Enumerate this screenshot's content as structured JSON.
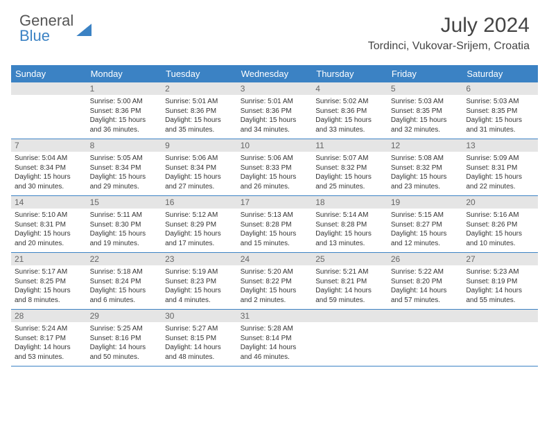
{
  "brand": {
    "part1": "General",
    "part2": "Blue"
  },
  "title": "July 2024",
  "location": "Tordinci, Vukovar-Srijem, Croatia",
  "colors": {
    "accent": "#3b82c4",
    "header_gray": "#e5e5e5",
    "text": "#333333",
    "bg": "#ffffff"
  },
  "day_headers": [
    "Sunday",
    "Monday",
    "Tuesday",
    "Wednesday",
    "Thursday",
    "Friday",
    "Saturday"
  ],
  "weeks": [
    [
      {
        "empty": true
      },
      {
        "num": "1",
        "sunrise": "Sunrise: 5:00 AM",
        "sunset": "Sunset: 8:36 PM",
        "daylight": "Daylight: 15 hours and 36 minutes."
      },
      {
        "num": "2",
        "sunrise": "Sunrise: 5:01 AM",
        "sunset": "Sunset: 8:36 PM",
        "daylight": "Daylight: 15 hours and 35 minutes."
      },
      {
        "num": "3",
        "sunrise": "Sunrise: 5:01 AM",
        "sunset": "Sunset: 8:36 PM",
        "daylight": "Daylight: 15 hours and 34 minutes."
      },
      {
        "num": "4",
        "sunrise": "Sunrise: 5:02 AM",
        "sunset": "Sunset: 8:36 PM",
        "daylight": "Daylight: 15 hours and 33 minutes."
      },
      {
        "num": "5",
        "sunrise": "Sunrise: 5:03 AM",
        "sunset": "Sunset: 8:35 PM",
        "daylight": "Daylight: 15 hours and 32 minutes."
      },
      {
        "num": "6",
        "sunrise": "Sunrise: 5:03 AM",
        "sunset": "Sunset: 8:35 PM",
        "daylight": "Daylight: 15 hours and 31 minutes."
      }
    ],
    [
      {
        "num": "7",
        "sunrise": "Sunrise: 5:04 AM",
        "sunset": "Sunset: 8:34 PM",
        "daylight": "Daylight: 15 hours and 30 minutes."
      },
      {
        "num": "8",
        "sunrise": "Sunrise: 5:05 AM",
        "sunset": "Sunset: 8:34 PM",
        "daylight": "Daylight: 15 hours and 29 minutes."
      },
      {
        "num": "9",
        "sunrise": "Sunrise: 5:06 AM",
        "sunset": "Sunset: 8:34 PM",
        "daylight": "Daylight: 15 hours and 27 minutes."
      },
      {
        "num": "10",
        "sunrise": "Sunrise: 5:06 AM",
        "sunset": "Sunset: 8:33 PM",
        "daylight": "Daylight: 15 hours and 26 minutes."
      },
      {
        "num": "11",
        "sunrise": "Sunrise: 5:07 AM",
        "sunset": "Sunset: 8:32 PM",
        "daylight": "Daylight: 15 hours and 25 minutes."
      },
      {
        "num": "12",
        "sunrise": "Sunrise: 5:08 AM",
        "sunset": "Sunset: 8:32 PM",
        "daylight": "Daylight: 15 hours and 23 minutes."
      },
      {
        "num": "13",
        "sunrise": "Sunrise: 5:09 AM",
        "sunset": "Sunset: 8:31 PM",
        "daylight": "Daylight: 15 hours and 22 minutes."
      }
    ],
    [
      {
        "num": "14",
        "sunrise": "Sunrise: 5:10 AM",
        "sunset": "Sunset: 8:31 PM",
        "daylight": "Daylight: 15 hours and 20 minutes."
      },
      {
        "num": "15",
        "sunrise": "Sunrise: 5:11 AM",
        "sunset": "Sunset: 8:30 PM",
        "daylight": "Daylight: 15 hours and 19 minutes."
      },
      {
        "num": "16",
        "sunrise": "Sunrise: 5:12 AM",
        "sunset": "Sunset: 8:29 PM",
        "daylight": "Daylight: 15 hours and 17 minutes."
      },
      {
        "num": "17",
        "sunrise": "Sunrise: 5:13 AM",
        "sunset": "Sunset: 8:28 PM",
        "daylight": "Daylight: 15 hours and 15 minutes."
      },
      {
        "num": "18",
        "sunrise": "Sunrise: 5:14 AM",
        "sunset": "Sunset: 8:28 PM",
        "daylight": "Daylight: 15 hours and 13 minutes."
      },
      {
        "num": "19",
        "sunrise": "Sunrise: 5:15 AM",
        "sunset": "Sunset: 8:27 PM",
        "daylight": "Daylight: 15 hours and 12 minutes."
      },
      {
        "num": "20",
        "sunrise": "Sunrise: 5:16 AM",
        "sunset": "Sunset: 8:26 PM",
        "daylight": "Daylight: 15 hours and 10 minutes."
      }
    ],
    [
      {
        "num": "21",
        "sunrise": "Sunrise: 5:17 AM",
        "sunset": "Sunset: 8:25 PM",
        "daylight": "Daylight: 15 hours and 8 minutes."
      },
      {
        "num": "22",
        "sunrise": "Sunrise: 5:18 AM",
        "sunset": "Sunset: 8:24 PM",
        "daylight": "Daylight: 15 hours and 6 minutes."
      },
      {
        "num": "23",
        "sunrise": "Sunrise: 5:19 AM",
        "sunset": "Sunset: 8:23 PM",
        "daylight": "Daylight: 15 hours and 4 minutes."
      },
      {
        "num": "24",
        "sunrise": "Sunrise: 5:20 AM",
        "sunset": "Sunset: 8:22 PM",
        "daylight": "Daylight: 15 hours and 2 minutes."
      },
      {
        "num": "25",
        "sunrise": "Sunrise: 5:21 AM",
        "sunset": "Sunset: 8:21 PM",
        "daylight": "Daylight: 14 hours and 59 minutes."
      },
      {
        "num": "26",
        "sunrise": "Sunrise: 5:22 AM",
        "sunset": "Sunset: 8:20 PM",
        "daylight": "Daylight: 14 hours and 57 minutes."
      },
      {
        "num": "27",
        "sunrise": "Sunrise: 5:23 AM",
        "sunset": "Sunset: 8:19 PM",
        "daylight": "Daylight: 14 hours and 55 minutes."
      }
    ],
    [
      {
        "num": "28",
        "sunrise": "Sunrise: 5:24 AM",
        "sunset": "Sunset: 8:17 PM",
        "daylight": "Daylight: 14 hours and 53 minutes."
      },
      {
        "num": "29",
        "sunrise": "Sunrise: 5:25 AM",
        "sunset": "Sunset: 8:16 PM",
        "daylight": "Daylight: 14 hours and 50 minutes."
      },
      {
        "num": "30",
        "sunrise": "Sunrise: 5:27 AM",
        "sunset": "Sunset: 8:15 PM",
        "daylight": "Daylight: 14 hours and 48 minutes."
      },
      {
        "num": "31",
        "sunrise": "Sunrise: 5:28 AM",
        "sunset": "Sunset: 8:14 PM",
        "daylight": "Daylight: 14 hours and 46 minutes."
      },
      {
        "empty": true
      },
      {
        "empty": true
      },
      {
        "empty": true
      }
    ]
  ]
}
